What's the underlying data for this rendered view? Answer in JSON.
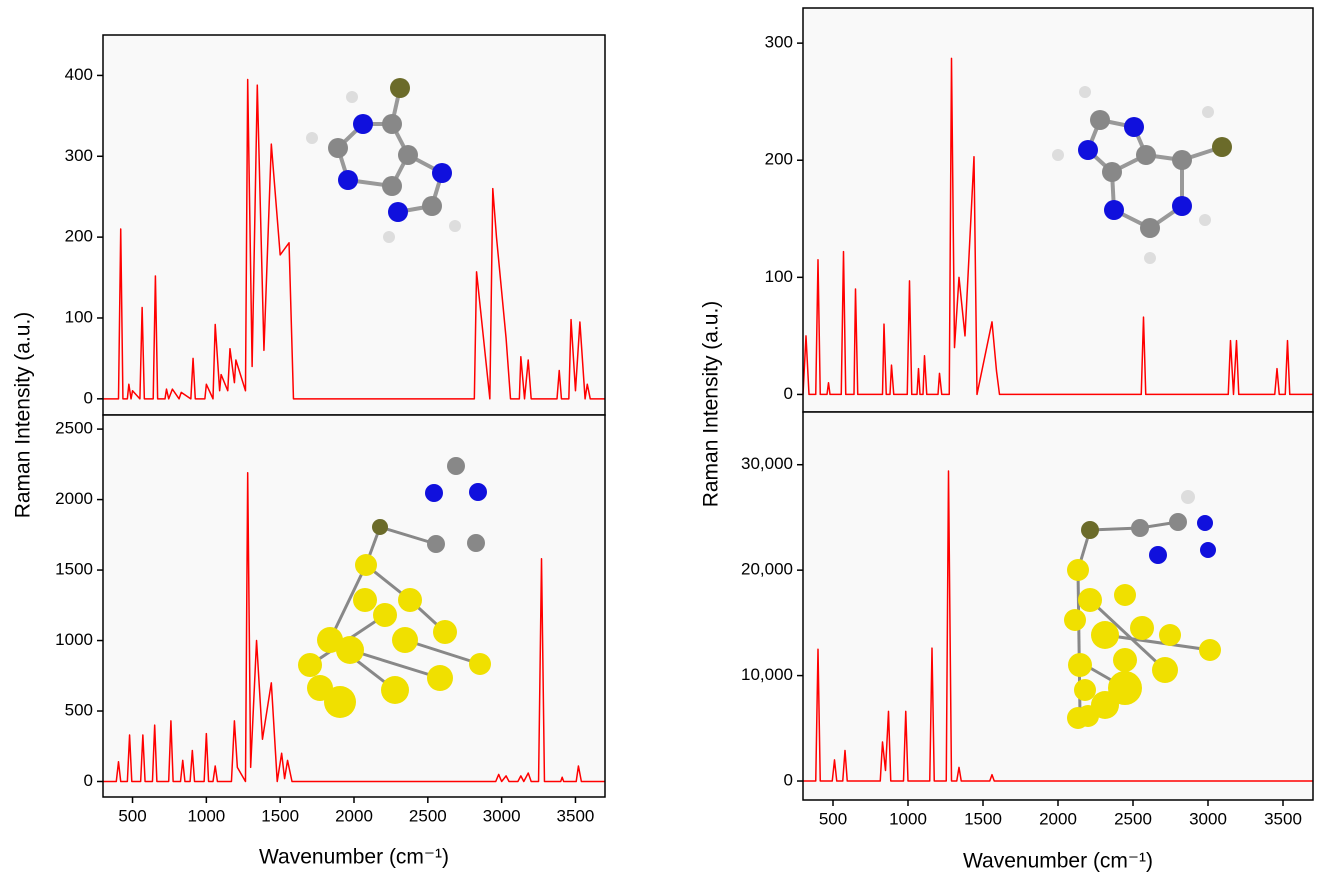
{
  "chart_data": [
    {
      "type": "line",
      "color": "#ff0000",
      "ylabel": "Raman Intensity (a.u.)",
      "xlim": [
        300,
        3700
      ],
      "xticks": [
        500,
        1000,
        1500,
        2000,
        2500,
        3000,
        3500
      ],
      "ylim": [
        -20,
        450
      ],
      "yticks": [
        0,
        100,
        200,
        300,
        400
      ],
      "x": [
        300,
        405,
        420,
        435,
        465,
        475,
        490,
        500,
        550,
        565,
        580,
        640,
        655,
        670,
        720,
        730,
        745,
        770,
        815,
        830,
        895,
        910,
        925,
        990,
        1000,
        1045,
        1060,
        1090,
        1100,
        1145,
        1160,
        1190,
        1200,
        1265,
        1280,
        1310,
        1345,
        1390,
        1440,
        1500,
        1560,
        1590,
        2815,
        2830,
        2920,
        2940,
        2965,
        3030,
        3060,
        3120,
        3130,
        3155,
        3180,
        3200,
        3375,
        3390,
        3405,
        3455,
        3470,
        3500,
        3530,
        3565,
        3580,
        3600,
        3700
      ],
      "values": [
        0,
        0,
        210,
        0,
        0,
        18,
        0,
        10,
        0,
        113,
        0,
        0,
        152,
        0,
        0,
        12,
        0,
        12,
        0,
        8,
        0,
        50,
        0,
        0,
        18,
        0,
        92,
        10,
        30,
        10,
        62,
        20,
        48,
        10,
        395,
        40,
        388,
        60,
        315,
        178,
        193,
        0,
        0,
        157,
        0,
        260,
        200,
        75,
        0,
        0,
        52,
        0,
        48,
        0,
        0,
        35,
        0,
        0,
        98,
        10,
        95,
        0,
        18,
        0,
        0
      ]
    },
    {
      "type": "line",
      "color": "#ff0000",
      "xlabel": "Wavenumber (cm⁻¹)",
      "xlim": [
        300,
        3700
      ],
      "xticks": [
        500,
        1000,
        1500,
        2000,
        2500,
        3000,
        3500
      ],
      "ylim": [
        -110,
        2600
      ],
      "yticks": [
        0,
        500,
        1000,
        1500,
        2000,
        2500
      ],
      "x": [
        300,
        390,
        405,
        420,
        465,
        480,
        495,
        555,
        570,
        585,
        635,
        650,
        665,
        745,
        760,
        775,
        825,
        840,
        855,
        890,
        905,
        920,
        985,
        1000,
        1015,
        1045,
        1060,
        1075,
        1170,
        1190,
        1210,
        1265,
        1280,
        1300,
        1340,
        1380,
        1440,
        1480,
        1510,
        1530,
        1550,
        1580,
        2960,
        2980,
        3000,
        3030,
        3050,
        3110,
        3130,
        3150,
        3180,
        3200,
        3250,
        3270,
        3290,
        3400,
        3410,
        3420,
        3505,
        3520,
        3540,
        3700
      ],
      "values": [
        0,
        0,
        140,
        0,
        0,
        330,
        0,
        0,
        330,
        0,
        0,
        400,
        0,
        0,
        430,
        0,
        0,
        150,
        0,
        0,
        220,
        0,
        0,
        340,
        0,
        0,
        110,
        0,
        0,
        430,
        100,
        0,
        2190,
        100,
        1000,
        300,
        700,
        0,
        200,
        20,
        150,
        0,
        0,
        50,
        0,
        40,
        0,
        0,
        40,
        0,
        60,
        0,
        0,
        1580,
        0,
        0,
        30,
        0,
        0,
        110,
        0,
        0
      ]
    },
    {
      "type": "line",
      "color": "#ff0000",
      "ylabel": "Raman Intensity (a.u.)",
      "xlim": [
        300,
        3700
      ],
      "xticks": [
        500,
        1000,
        1500,
        2000,
        2500,
        3000,
        3500
      ],
      "ylim": [
        -15,
        330
      ],
      "yticks": [
        0,
        100,
        200,
        300
      ],
      "x": [
        300,
        320,
        340,
        385,
        400,
        415,
        460,
        470,
        480,
        555,
        570,
        585,
        640,
        650,
        665,
        830,
        840,
        855,
        880,
        890,
        905,
        995,
        1010,
        1025,
        1060,
        1070,
        1080,
        1100,
        1110,
        1125,
        1200,
        1210,
        1225,
        1275,
        1290,
        1310,
        1340,
        1380,
        1440,
        1460,
        1560,
        1590,
        1610,
        2555,
        2570,
        2585,
        3135,
        3150,
        3170,
        3190,
        3205,
        3445,
        3460,
        3475,
        3515,
        3530,
        3545,
        3700
      ],
      "values": [
        0,
        50,
        0,
        0,
        115,
        0,
        0,
        10,
        0,
        0,
        122,
        0,
        0,
        90,
        0,
        0,
        60,
        0,
        0,
        25,
        0,
        0,
        97,
        0,
        0,
        22,
        0,
        0,
        33,
        0,
        0,
        18,
        0,
        0,
        287,
        40,
        100,
        50,
        203,
        0,
        62,
        20,
        0,
        0,
        66,
        0,
        0,
        46,
        0,
        46,
        0,
        0,
        22,
        0,
        0,
        46,
        0,
        0
      ]
    },
    {
      "type": "line",
      "color": "#ff0000",
      "xlabel": "Wavenumber (cm⁻¹)",
      "xlim": [
        300,
        3700
      ],
      "xticks": [
        500,
        1000,
        1500,
        2000,
        2500,
        3000,
        3500
      ],
      "ylim": [
        -1800,
        35000
      ],
      "yticks": [
        0,
        {
          "value": 10000,
          "label": "10,000"
        },
        {
          "value": 20000,
          "label": "20,000"
        },
        {
          "value": 30000,
          "label": "30,000"
        }
      ],
      "x": [
        300,
        385,
        400,
        415,
        495,
        510,
        525,
        565,
        580,
        595,
        815,
        830,
        850,
        870,
        885,
        970,
        985,
        1000,
        1145,
        1160,
        1175,
        1255,
        1270,
        1290,
        1325,
        1340,
        1355,
        1545,
        1560,
        1575,
        3700
      ],
      "values": [
        0,
        0,
        12500,
        0,
        0,
        2000,
        0,
        0,
        2900,
        0,
        0,
        3700,
        1000,
        6600,
        0,
        0,
        6600,
        0,
        0,
        12600,
        0,
        0,
        29400,
        0,
        0,
        1300,
        0,
        0,
        600,
        0,
        0
      ]
    }
  ]
}
